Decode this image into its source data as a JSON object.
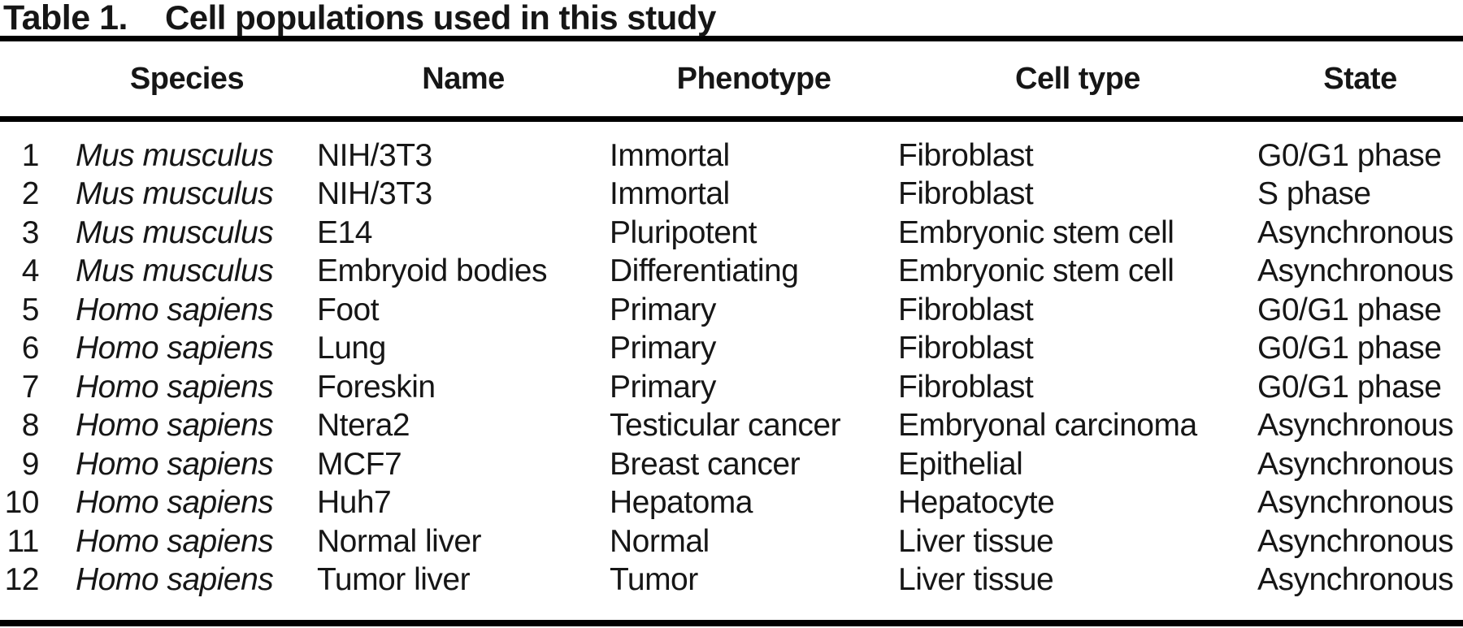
{
  "title": {
    "label": "Table 1.",
    "caption": "Cell populations used in this study"
  },
  "columns": [
    "",
    "Species",
    "Name",
    "Phenotype",
    "Cell type",
    "State"
  ],
  "rows": [
    {
      "num": "1",
      "species": "Mus musculus",
      "name": "NIH/3T3",
      "phenotype": "Immortal",
      "cell_type": "Fibroblast",
      "state": "G0/G1 phase"
    },
    {
      "num": "2",
      "species": "Mus musculus",
      "name": "NIH/3T3",
      "phenotype": "Immortal",
      "cell_type": "Fibroblast",
      "state": "S phase"
    },
    {
      "num": "3",
      "species": "Mus musculus",
      "name": "E14",
      "phenotype": "Pluripotent",
      "cell_type": "Embryonic stem cell",
      "state": "Asynchronous"
    },
    {
      "num": "4",
      "species": "Mus musculus",
      "name": "Embryoid bodies",
      "phenotype": "Differentiating",
      "cell_type": "Embryonic stem cell",
      "state": "Asynchronous"
    },
    {
      "num": "5",
      "species": "Homo sapiens",
      "name": "Foot",
      "phenotype": "Primary",
      "cell_type": "Fibroblast",
      "state": "G0/G1 phase"
    },
    {
      "num": "6",
      "species": "Homo sapiens",
      "name": "Lung",
      "phenotype": "Primary",
      "cell_type": "Fibroblast",
      "state": "G0/G1 phase"
    },
    {
      "num": "7",
      "species": "Homo sapiens",
      "name": "Foreskin",
      "phenotype": "Primary",
      "cell_type": "Fibroblast",
      "state": "G0/G1 phase"
    },
    {
      "num": "8",
      "species": "Homo sapiens",
      "name": "Ntera2",
      "phenotype": "Testicular cancer",
      "cell_type": "Embryonal carcinoma",
      "state": "Asynchronous"
    },
    {
      "num": "9",
      "species": "Homo sapiens",
      "name": "MCF7",
      "phenotype": "Breast cancer",
      "cell_type": "Epithelial",
      "state": "Asynchronous"
    },
    {
      "num": "10",
      "species": "Homo sapiens",
      "name": "Huh7",
      "phenotype": "Hepatoma",
      "cell_type": "Hepatocyte",
      "state": "Asynchronous"
    },
    {
      "num": "11",
      "species": "Homo sapiens",
      "name": "Normal liver",
      "phenotype": "Normal",
      "cell_type": "Liver tissue",
      "state": "Asynchronous"
    },
    {
      "num": "12",
      "species": "Homo sapiens",
      "name": "Tumor liver",
      "phenotype": "Tumor",
      "cell_type": "Liver tissue",
      "state": "Asynchronous"
    }
  ],
  "colors": {
    "text": "#161616",
    "rule": "#000000",
    "background": "#ffffff"
  }
}
